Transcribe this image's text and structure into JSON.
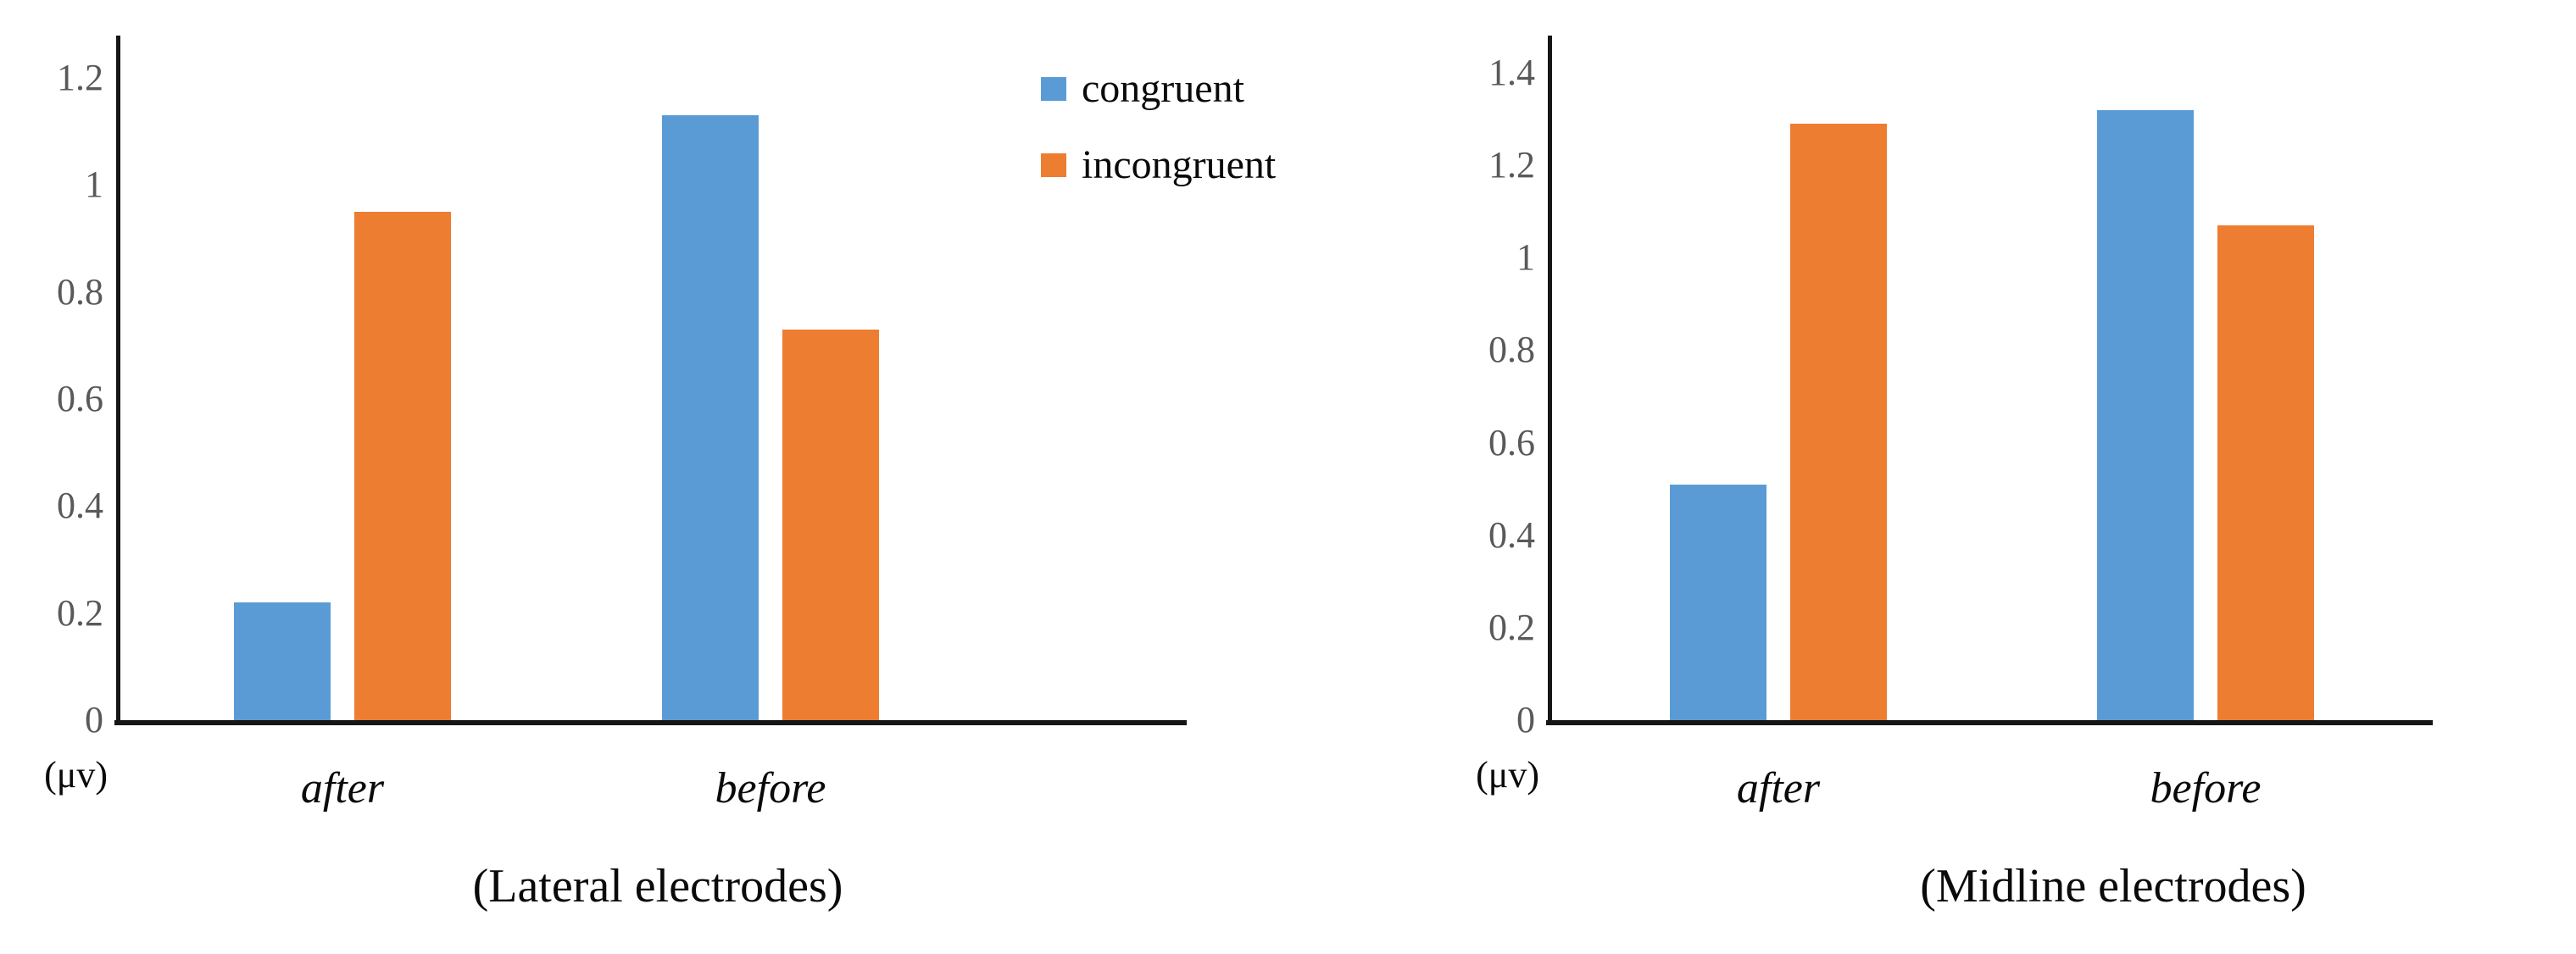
{
  "figure": {
    "background": "#ffffff"
  },
  "legend": {
    "items": [
      {
        "label": "congruent",
        "color": "#5B9BD5"
      },
      {
        "label": "incongruent",
        "color": "#ED7D31"
      }
    ],
    "position": "top-center-between-charts"
  },
  "colors": {
    "axis": "#161616",
    "tick_text": "#595959",
    "label_text": "#0a0a0a",
    "congruent": "#5B9BD5",
    "incongruent": "#ED7D31"
  },
  "chart_data": [
    {
      "type": "bar",
      "title": "(Lateral electrodes)",
      "unit_label": "(μv)",
      "xlabel": "",
      "ylabel": "(μv)",
      "categories": [
        "after",
        "before"
      ],
      "series": [
        {
          "name": "congruent",
          "color": "#5B9BD5",
          "values": [
            0.22,
            1.13
          ]
        },
        {
          "name": "incongruent",
          "color": "#ED7D31",
          "values": [
            0.95,
            0.73
          ]
        }
      ],
      "ylim": [
        0,
        1.2
      ],
      "yticks": [
        "0",
        "0.2",
        "0.4",
        "0.6",
        "0.8",
        "1",
        "1.2"
      ],
      "grid": false,
      "legend_position": "right-of-chart"
    },
    {
      "type": "bar",
      "title": "(Midline electrodes)",
      "unit_label": "(μv)",
      "xlabel": "",
      "ylabel": "(μv)",
      "categories": [
        "after",
        "before"
      ],
      "series": [
        {
          "name": "congruent",
          "color": "#5B9BD5",
          "values": [
            0.51,
            1.32
          ]
        },
        {
          "name": "incongruent",
          "color": "#ED7D31",
          "values": [
            1.29,
            1.07
          ]
        }
      ],
      "ylim": [
        0,
        1.4
      ],
      "yticks": [
        "0",
        "0.2",
        "0.4",
        "0.6",
        "0.8",
        "1",
        "1.2",
        "1.4"
      ],
      "grid": false,
      "legend_position": "shared"
    }
  ]
}
